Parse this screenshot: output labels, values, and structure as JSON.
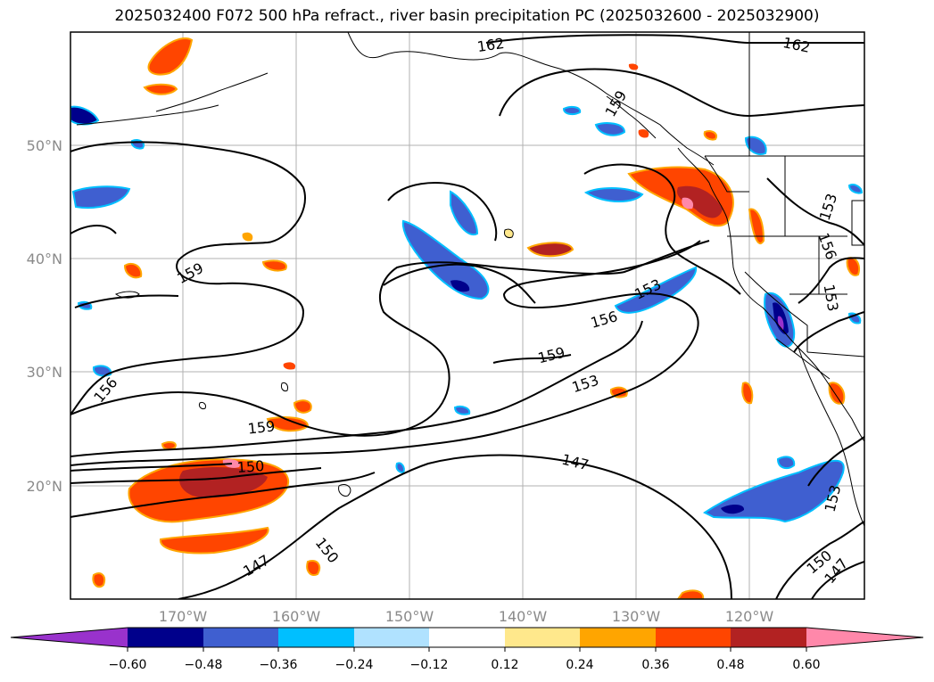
{
  "title": "2025032400 F072 500 hPa refract., river basin precipitation PC (2025032600 - 2025032900)",
  "map": {
    "lat_labels": [
      "50°N",
      "40°N",
      "30°N",
      "20°N"
    ],
    "lon_labels": [
      "170°W",
      "160°W",
      "150°W",
      "140°W",
      "130°W",
      "120°W"
    ],
    "grid": true,
    "contour_labels": [
      "162",
      "162",
      "159",
      "159",
      "159",
      "159",
      "156",
      "156",
      "156",
      "153",
      "153",
      "153",
      "153",
      "153",
      "150",
      "150",
      "150",
      "147",
      "147",
      "147"
    ]
  },
  "colorbar": {
    "ticks": [
      "−0.60",
      "−0.48",
      "−0.36",
      "−0.24",
      "−0.12",
      "0.12",
      "0.24",
      "0.36",
      "0.48",
      "0.60"
    ],
    "colors": [
      "#9932cc",
      "#00008b",
      "#3f5fd0",
      "#00bfff",
      "#b0e2ff",
      "#ffffff",
      "#ffe88c",
      "#ffa500",
      "#ff4500",
      "#b22222",
      "#ff88aa"
    ]
  }
}
